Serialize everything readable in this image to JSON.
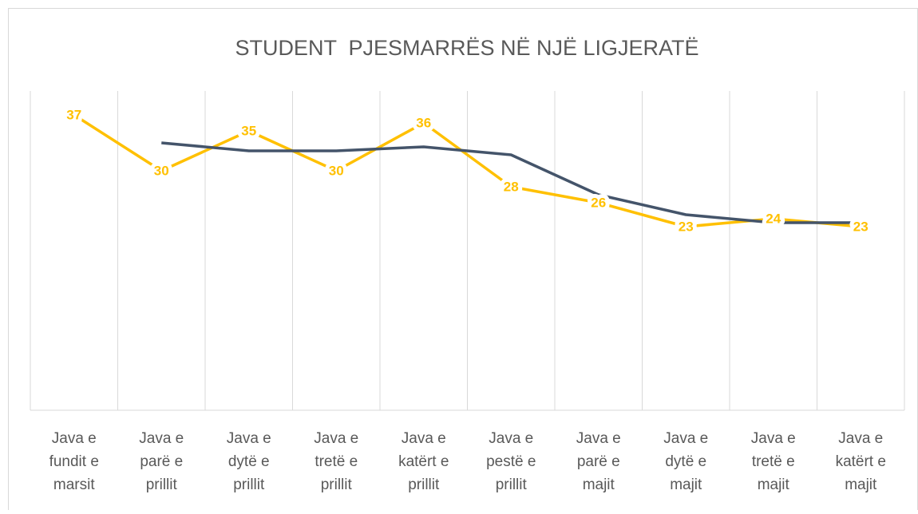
{
  "chart_data": {
    "type": "line",
    "title": "STUDENT  PJESMARRËS NË NJË LIGJERATË",
    "categories": [
      "Java e fundit e marsit",
      "Java e parë e prillit",
      "Java e dytë e prillit",
      "Java e tretë e prillit",
      "Java e katërt e prillit",
      "Java e pestë e prillit",
      "Java e parë e majit",
      "Java e dytë e majit",
      "Java e tretë e majit",
      "Java e katërt e majit"
    ],
    "series": [
      {
        "color": "#ffc000",
        "values": [
          37,
          30,
          35,
          30,
          36,
          28,
          26,
          23,
          24,
          23
        ],
        "data_labels": true
      },
      {
        "color": "#44546a",
        "values": [
          null,
          33.5,
          32.5,
          32.5,
          33,
          32,
          27,
          24.5,
          23.5,
          23.5
        ],
        "data_labels": false
      }
    ],
    "ylim": [
      0,
      40
    ],
    "grid": true
  }
}
